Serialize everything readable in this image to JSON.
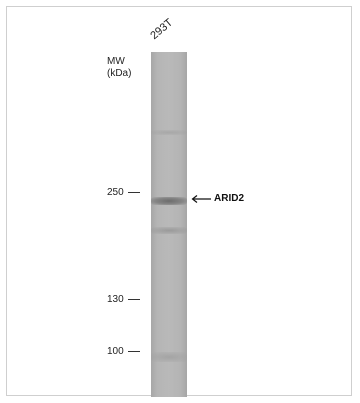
{
  "lane": {
    "label": "293T"
  },
  "mw": {
    "title_line1": "MW",
    "title_line2": "(kDa)"
  },
  "markers": [
    {
      "value": "250"
    },
    {
      "value": "130"
    },
    {
      "value": "100"
    }
  ],
  "target": {
    "label": "ARID2",
    "arrow_icon": "left-arrow-icon"
  }
}
